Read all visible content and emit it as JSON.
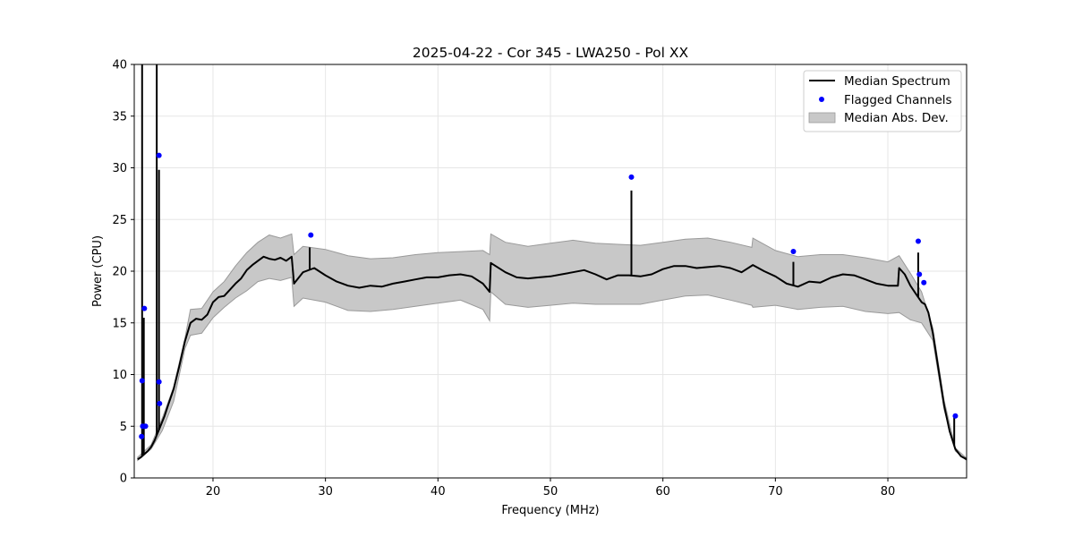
{
  "chart_data": {
    "type": "line",
    "title": "2025-04-22 - Cor 345 - LWA250 - Pol XX",
    "xlabel": "Frequency (MHz)",
    "ylabel": "Power (CPU)",
    "xlim": [
      13,
      87
    ],
    "ylim": [
      0,
      40
    ],
    "xticks": [
      20,
      30,
      40,
      50,
      60,
      70,
      80
    ],
    "yticks": [
      0,
      5,
      10,
      15,
      20,
      25,
      30,
      35,
      40
    ],
    "grid": true,
    "legend_position": "top-right",
    "colors": {
      "median": "#000000",
      "flagged": "#0000ff",
      "mad_fill": "#c8c8c8",
      "mad_edge": "#9a9a9a",
      "grid": "#e6e6e6"
    },
    "legend": [
      {
        "label": "Median Spectrum",
        "kind": "line"
      },
      {
        "label": "Flagged Channels",
        "kind": "marker"
      },
      {
        "label": "Median Abs. Dev.",
        "kind": "patch"
      }
    ],
    "series": [
      {
        "name": "Median Spectrum",
        "x": [
          13.3,
          13.6,
          13.9,
          14.2,
          14.5,
          14.8,
          15.1,
          15.4,
          15.7,
          16.0,
          16.5,
          17.0,
          17.5,
          18.0,
          18.5,
          19.0,
          19.5,
          20.0,
          20.5,
          21.0,
          21.5,
          22.0,
          22.5,
          23.0,
          23.5,
          24.0,
          24.5,
          25.0,
          25.5,
          26.0,
          26.5,
          27.0,
          27.2,
          28.0,
          29.0,
          30.0,
          31.0,
          32.0,
          33.0,
          34.0,
          35.0,
          36.0,
          37.0,
          38.0,
          39.0,
          40.0,
          41.0,
          42.0,
          43.0,
          44.0,
          44.6,
          44.7,
          46.0,
          47.0,
          48.0,
          49.0,
          50.0,
          51.0,
          52.0,
          53.0,
          54.0,
          55.0,
          56.0,
          57.0,
          58.0,
          59.0,
          60.0,
          61.0,
          62.0,
          63.0,
          64.0,
          65.0,
          66.0,
          67.0,
          68.0,
          69.0,
          70.0,
          71.0,
          72.0,
          73.0,
          74.0,
          75.0,
          76.0,
          77.0,
          78.0,
          79.0,
          80.0,
          80.9,
          81.0,
          81.5,
          82.0,
          82.5,
          83.0,
          83.3,
          83.6,
          84.0,
          84.5,
          85.0,
          85.5,
          86.0,
          86.5,
          87.0
        ],
        "y": [
          1.8,
          2.0,
          2.3,
          2.6,
          3.0,
          3.6,
          4.4,
          5.2,
          6.0,
          7.0,
          8.6,
          10.8,
          13.2,
          15.0,
          15.4,
          15.3,
          15.8,
          17.0,
          17.5,
          17.6,
          18.2,
          18.8,
          19.3,
          20.1,
          20.6,
          21.0,
          21.4,
          21.2,
          21.1,
          21.3,
          21.0,
          21.4,
          18.8,
          19.9,
          20.3,
          19.6,
          19.0,
          18.6,
          18.4,
          18.6,
          18.5,
          18.8,
          19.0,
          19.2,
          19.4,
          19.4,
          19.6,
          19.7,
          19.5,
          18.8,
          18.0,
          20.8,
          19.9,
          19.4,
          19.3,
          19.4,
          19.5,
          19.7,
          19.9,
          20.1,
          19.7,
          19.2,
          19.6,
          19.6,
          19.5,
          19.7,
          20.2,
          20.5,
          20.5,
          20.3,
          20.4,
          20.5,
          20.3,
          19.9,
          20.6,
          20.0,
          19.5,
          18.8,
          18.5,
          19.0,
          18.9,
          19.4,
          19.7,
          19.6,
          19.2,
          18.8,
          18.6,
          18.6,
          20.3,
          19.7,
          18.6,
          17.8,
          17.0,
          16.8,
          16.0,
          14.0,
          10.5,
          7.0,
          4.5,
          2.8,
          2.1,
          1.8
        ]
      },
      {
        "name": "Median Abs. Dev.",
        "x": [
          13.3,
          14.5,
          15.5,
          16.5,
          17.5,
          18.0,
          19.0,
          20.0,
          21.0,
          22.0,
          23.0,
          24.0,
          25.0,
          26.0,
          27.0,
          27.2,
          28.0,
          30.0,
          32.0,
          34.0,
          36.0,
          38.0,
          40.0,
          42.0,
          44.0,
          44.6,
          44.7,
          46.0,
          48.0,
          50.0,
          52.0,
          54.0,
          56.0,
          58.0,
          60.0,
          62.0,
          64.0,
          66.0,
          67.9,
          68.0,
          70.0,
          72.0,
          74.0,
          76.0,
          78.0,
          80.0,
          81.0,
          82.0,
          83.0,
          84.0,
          85.0,
          86.0,
          87.0
        ],
        "upper": [
          2.0,
          3.2,
          5.8,
          8.8,
          13.5,
          16.3,
          16.4,
          18.0,
          19.0,
          20.5,
          21.8,
          22.8,
          23.5,
          23.2,
          23.6,
          21.6,
          22.4,
          22.1,
          21.5,
          21.2,
          21.3,
          21.6,
          21.8,
          21.9,
          22.0,
          21.6,
          23.6,
          22.8,
          22.4,
          22.7,
          23.0,
          22.7,
          22.6,
          22.5,
          22.8,
          23.1,
          23.2,
          22.8,
          22.3,
          23.2,
          22.0,
          21.4,
          21.6,
          21.6,
          21.3,
          20.9,
          21.5,
          19.8,
          18.0,
          14.5,
          7.5,
          2.9,
          1.9
        ],
        "lower": [
          1.7,
          2.8,
          4.6,
          7.4,
          12.5,
          13.8,
          14.0,
          15.5,
          16.5,
          17.4,
          18.1,
          19.0,
          19.3,
          19.1,
          19.4,
          16.6,
          17.4,
          17.0,
          16.2,
          16.1,
          16.3,
          16.6,
          16.9,
          17.2,
          16.3,
          15.2,
          18.0,
          16.8,
          16.5,
          16.7,
          16.9,
          16.8,
          16.8,
          16.8,
          17.2,
          17.6,
          17.7,
          17.2,
          16.7,
          16.5,
          16.7,
          16.3,
          16.5,
          16.6,
          16.1,
          15.9,
          16.0,
          15.3,
          15.0,
          13.3,
          6.6,
          2.6,
          1.7
        ]
      }
    ],
    "spikes": [
      {
        "x": 13.7,
        "y": 40
      },
      {
        "x": 13.85,
        "y": 15.5
      },
      {
        "x": 15.0,
        "y": 40
      },
      {
        "x": 15.2,
        "y": 29.8
      },
      {
        "x": 28.6,
        "y": 22.3
      },
      {
        "x": 57.2,
        "y": 27.8
      },
      {
        "x": 71.6,
        "y": 20.9
      },
      {
        "x": 82.7,
        "y": 21.8
      },
      {
        "x": 85.9,
        "y": 5.9
      }
    ],
    "flagged": {
      "x": [
        13.65,
        13.7,
        13.75,
        13.9,
        14.0,
        15.2,
        15.2,
        15.25,
        28.7,
        57.2,
        71.6,
        82.7,
        82.8,
        83.2,
        86.0
      ],
      "y": [
        4.0,
        9.4,
        5.0,
        16.4,
        5.0,
        31.2,
        9.3,
        7.2,
        23.5,
        29.1,
        21.9,
        22.9,
        19.7,
        18.9,
        6.0
      ]
    }
  }
}
